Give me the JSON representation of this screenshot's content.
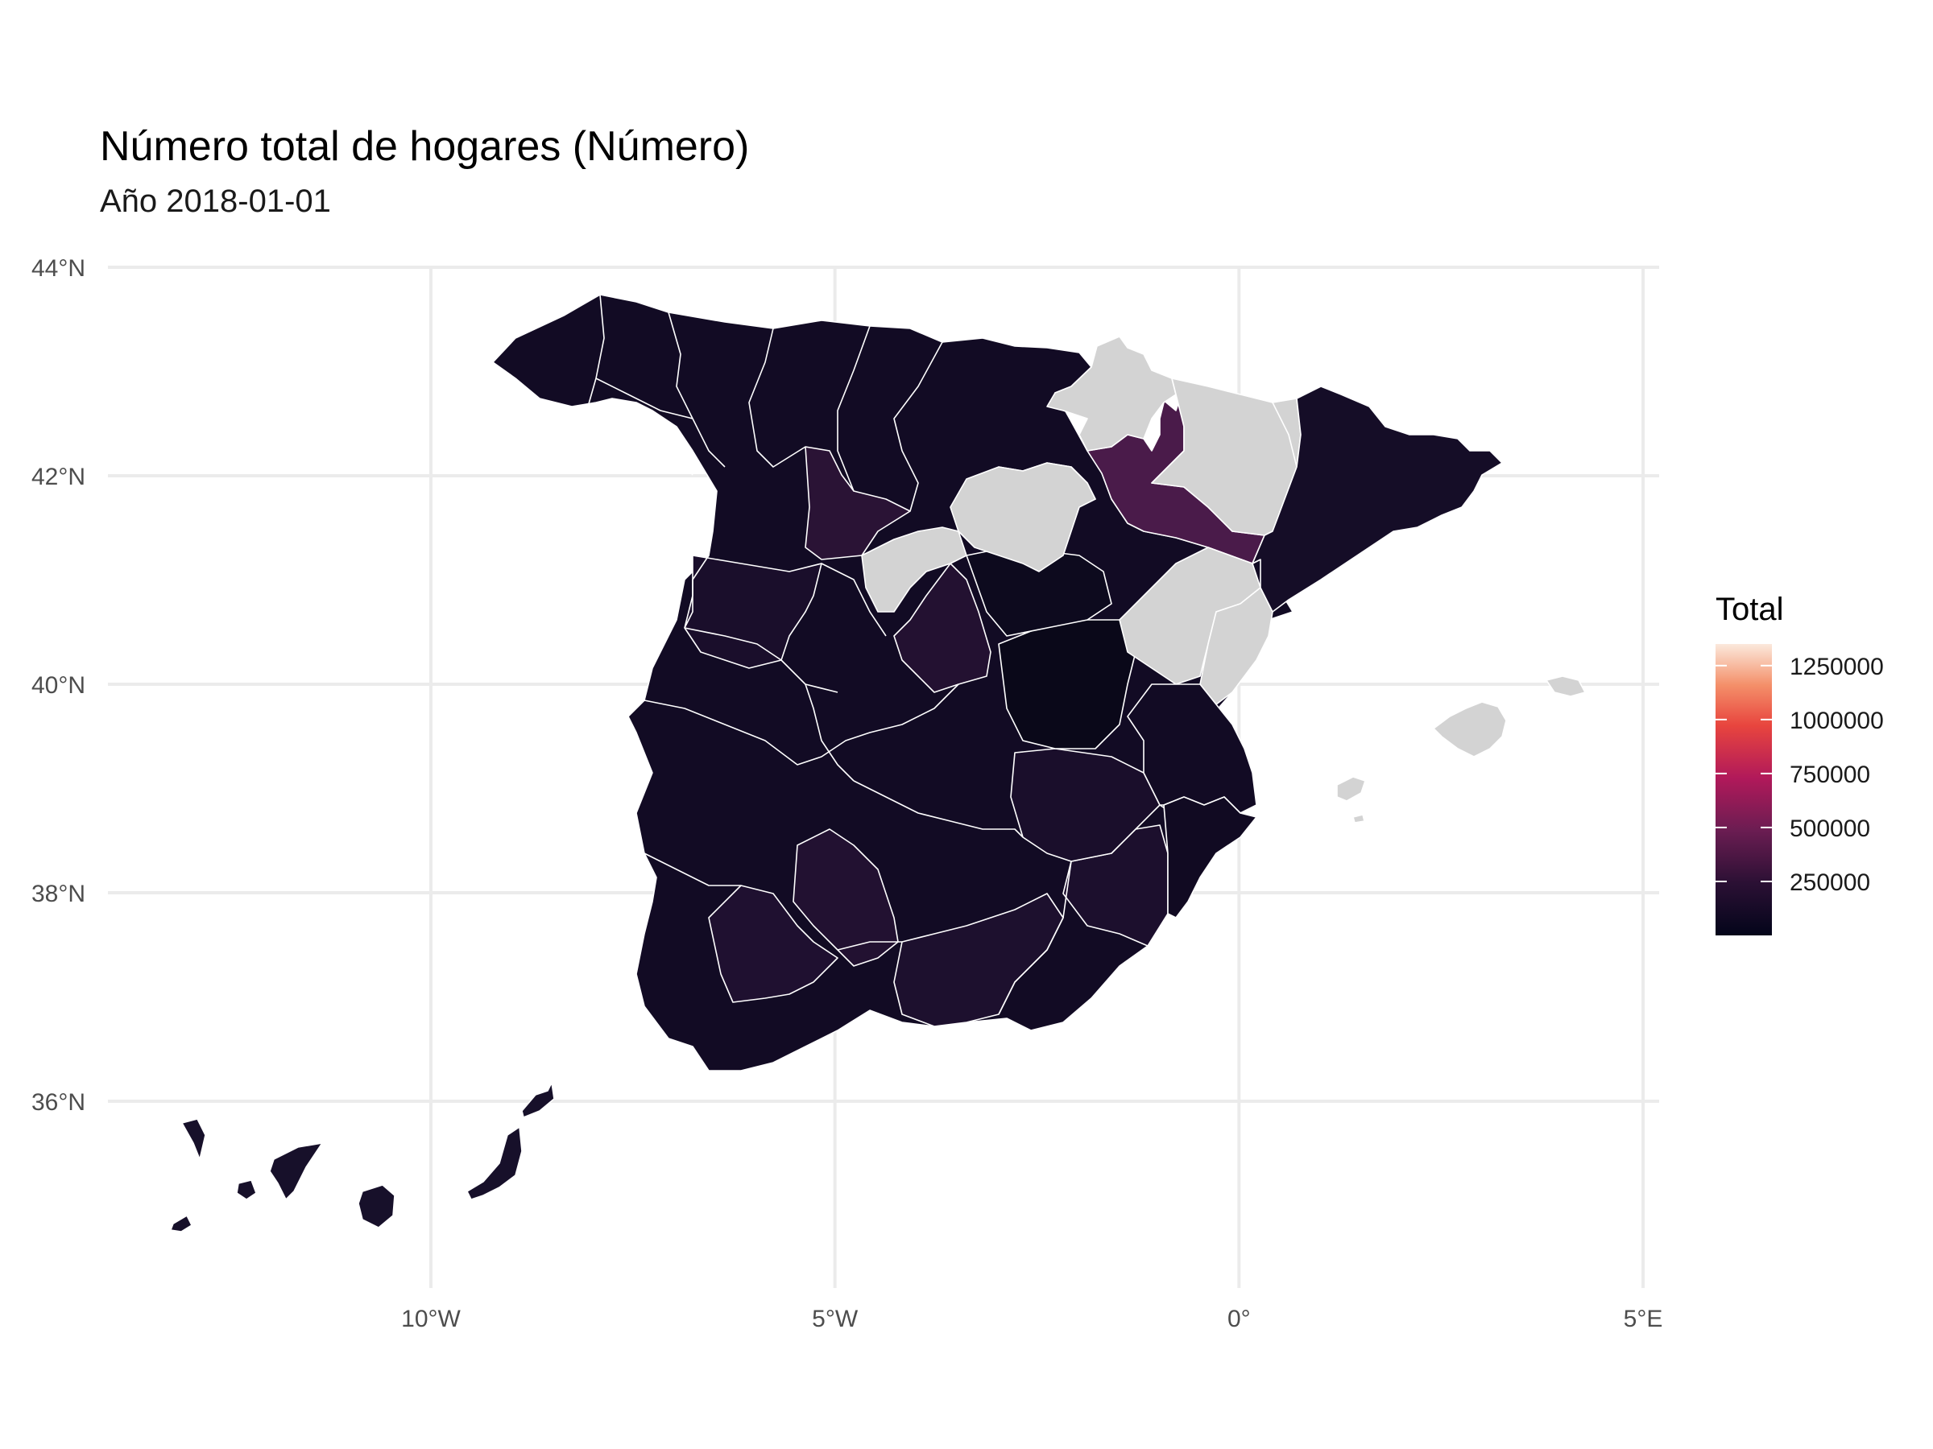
{
  "title": "Número total de hogares (Número)",
  "subtitle": "Año 2018-01-01",
  "chart_data": {
    "type": "choropleth",
    "region": "Spain — provinces",
    "title": "Número total de hogares (Número)",
    "subtitle": "Año 2018-01-01",
    "x_axis": {
      "ticks": [
        {
          "value": -10,
          "label": "10°W"
        },
        {
          "value": -5,
          "label": "5°W"
        },
        {
          "value": 0,
          "label": "0°"
        },
        {
          "value": 5,
          "label": "5°E"
        }
      ]
    },
    "y_axis": {
      "ticks": [
        {
          "value": 44,
          "label": "44°N"
        },
        {
          "value": 42,
          "label": "42°N"
        },
        {
          "value": 40,
          "label": "40°N"
        },
        {
          "value": 38,
          "label": "38°N"
        },
        {
          "value": 36,
          "label": "36°N"
        }
      ]
    },
    "grid": true,
    "legend": {
      "title": "Total",
      "position": "right",
      "breaks": [
        250000,
        500000,
        750000,
        1000000,
        1250000
      ],
      "labels": [
        "250000",
        "500000",
        "750000",
        "1000000",
        "1250000"
      ],
      "range": [
        0,
        1350000
      ],
      "colors": [
        "#03051A",
        "#4C1D4B",
        "#A11A5B",
        "#E83F3F",
        "#F69C73",
        "#FAEBDD"
      ]
    },
    "na_color": "#D3D3D3",
    "no_data_regions": [
      "Navarra",
      "Huesca",
      "La Rioja",
      "Soria",
      "Segovia",
      "Teruel",
      "Castellón",
      "Illes Balears"
    ],
    "estimated_values": {
      "Zaragoza": 390000,
      "Burgos": 150000,
      "Salamanca": 140000,
      "Ávila": 70000,
      "Granada": 160000,
      "Córdoba": 170000,
      "Sevilla": 150000,
      "Murcia": 150000,
      "Albacete": 120000,
      "Canarias": 110000,
      "Other provinces": 60000
    },
    "colors": {
      "grid": "#EBEBEB",
      "border": "#FFFFFF"
    }
  }
}
